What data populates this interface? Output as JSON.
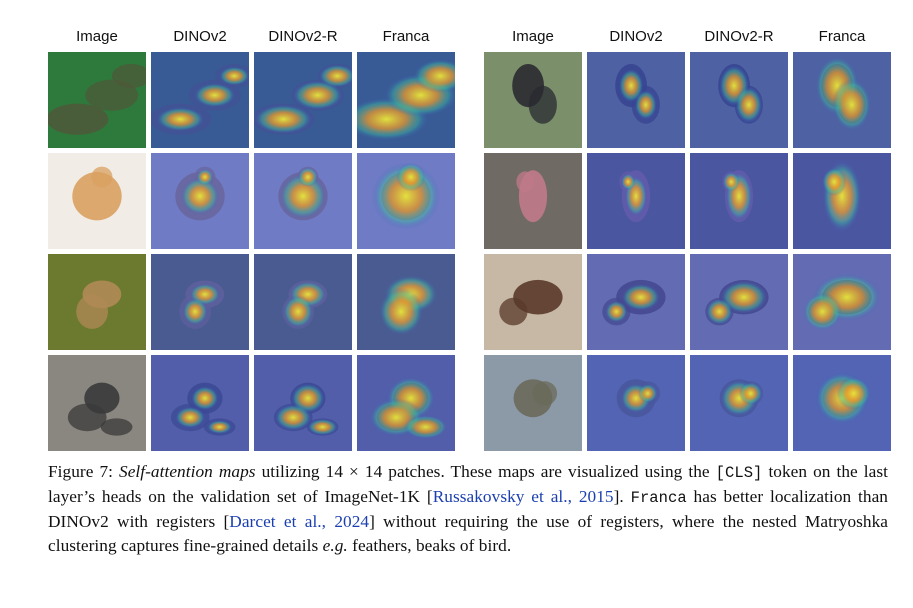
{
  "figure": {
    "left_panel": {
      "headers": [
        "Image",
        "DINOv2",
        "DINOv2-R",
        "Franca"
      ],
      "rows": [
        {
          "subject": "shark",
          "bg": "#2e7a3c"
        },
        {
          "subject": "hen",
          "bg": "#f1ede6"
        },
        {
          "subject": "bird",
          "bg": "#6b7a2e"
        },
        {
          "subject": "rickshaw",
          "bg": "#8a8680"
        }
      ]
    },
    "right_panel": {
      "headers": [
        "Image",
        "DINOv2",
        "DINOv2-R",
        "Franca"
      ],
      "rows": [
        {
          "subject": "couple",
          "bg": "#7a8f6a"
        },
        {
          "subject": "child",
          "bg": "#6f6a64"
        },
        {
          "subject": "horse-race",
          "bg": "#c6b8a4"
        },
        {
          "subject": "jeep",
          "bg": "#8c9aa8"
        }
      ]
    }
  },
  "caption": {
    "label": "Figure 7: ",
    "title": "Self-attention maps",
    "part1": " utilizing ",
    "math": "14 × 14",
    "part2": " patches. These maps are visualized using the ",
    "cls": "[CLS]",
    "part3": " token on the last layer’s heads on the validation set of ImageNet-1K [",
    "cite1": "Russakovsky et al., 2015",
    "part4": "]. ",
    "franca": "Franca",
    "part5": " has better localization than DINOv2 with registers [",
    "cite2": "Darcet et al., 2024",
    "part6": "] without requiring the use of registers, where the nested Matryoshka clustering captures fine-grained details ",
    "eg": "e.g.",
    "part7": " feathers, beaks of bird."
  },
  "colors": {
    "attention_base": "#3d4fb8",
    "attention_hot": "#e8e83a",
    "citation": "#1b3fb0"
  }
}
